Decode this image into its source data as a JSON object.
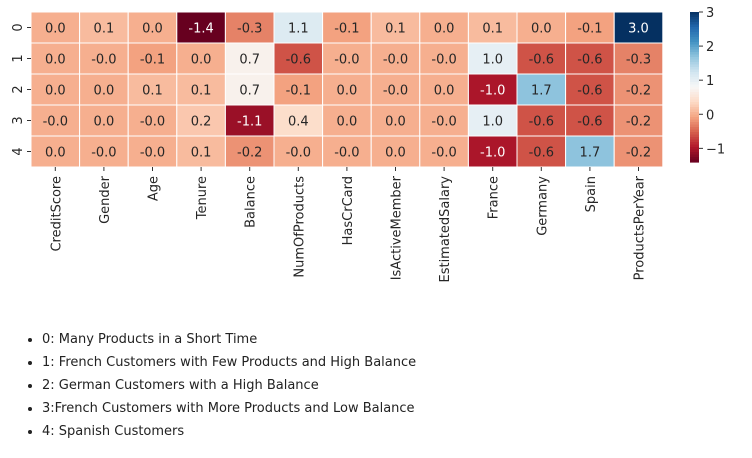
{
  "chart_data": {
    "type": "heatmap",
    "columns": [
      "CreditScore",
      "Gender",
      "Age",
      "Tenure",
      "Balance",
      "NumOfProducts",
      "HasCrCard",
      "IsActiveMember",
      "EstimatedSalary",
      "France",
      "Germany",
      "Spain",
      "ProductsPerYear"
    ],
    "rows": [
      "0",
      "1",
      "2",
      "3",
      "4"
    ],
    "values": [
      [
        0.0,
        0.1,
        0.0,
        -1.4,
        -0.3,
        1.1,
        -0.1,
        0.1,
        0.0,
        0.1,
        0.0,
        -0.1,
        3.0
      ],
      [
        0.0,
        -0.0,
        -0.1,
        0.0,
        0.7,
        -0.6,
        -0.0,
        -0.0,
        -0.0,
        1.0,
        -0.6,
        -0.6,
        -0.3
      ],
      [
        0.0,
        0.0,
        0.1,
        0.1,
        0.7,
        -0.1,
        0.0,
        -0.0,
        0.0,
        -1.0,
        1.7,
        -0.6,
        -0.2
      ],
      [
        -0.0,
        0.0,
        -0.0,
        0.2,
        -1.1,
        0.4,
        0.0,
        0.0,
        -0.0,
        1.0,
        -0.6,
        -0.6,
        -0.2
      ],
      [
        0.0,
        -0.0,
        -0.0,
        0.1,
        -0.2,
        -0.0,
        -0.0,
        0.0,
        -0.0,
        -1.0,
        -0.6,
        1.7,
        -0.2
      ]
    ],
    "value_labels": [
      [
        "0.0",
        "0.1",
        "0.0",
        "-1.4",
        "-0.3",
        "1.1",
        "-0.1",
        "0.1",
        "0.0",
        "0.1",
        "0.0",
        "-0.1",
        "3.0"
      ],
      [
        "0.0",
        "-0.0",
        "-0.1",
        "0.0",
        "0.7",
        "-0.6",
        "-0.0",
        "-0.0",
        "-0.0",
        "1.0",
        "-0.6",
        "-0.6",
        "-0.3"
      ],
      [
        "0.0",
        "0.0",
        "0.1",
        "0.1",
        "0.7",
        "-0.1",
        "0.0",
        "-0.0",
        "0.0",
        "-1.0",
        "1.7",
        "-0.6",
        "-0.2"
      ],
      [
        "-0.0",
        "0.0",
        "-0.0",
        "0.2",
        "-1.1",
        "0.4",
        "0.0",
        "0.0",
        "-0.0",
        "1.0",
        "-0.6",
        "-0.6",
        "-0.2"
      ],
      [
        "0.0",
        "-0.0",
        "-0.0",
        "0.1",
        "-0.2",
        "-0.0",
        "-0.0",
        "0.0",
        "-0.0",
        "-1.0",
        "-0.6",
        "1.7",
        "-0.2"
      ]
    ],
    "colormap": "RdBu",
    "color_range": [
      -1.4,
      3.0
    ],
    "colorbar_ticks": [
      -1,
      0,
      1,
      2,
      3
    ],
    "colorbar_tick_labels": [
      "−1",
      "0",
      "1",
      "2",
      "3"
    ],
    "title": "",
    "xlabel": "",
    "ylabel": ""
  },
  "legend": {
    "items": [
      "0: Many Products in a Short Time",
      "1: French Customers with Few Products and High Balance",
      "2: German Customers with a High Balance",
      "3:French Customers with More Products and Low Balance",
      "4: Spanish Customers"
    ]
  }
}
